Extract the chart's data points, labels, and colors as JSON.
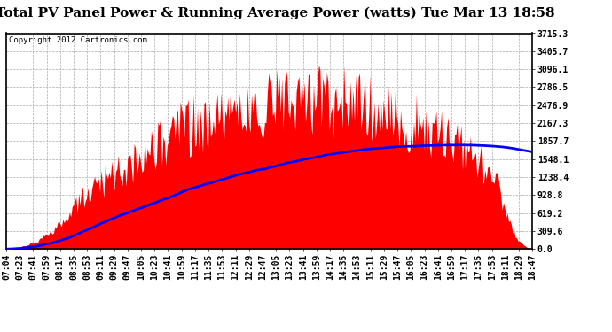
{
  "title": "Total PV Panel Power & Running Average Power (watts) Tue Mar 13 18:58",
  "copyright": "Copyright 2012 Cartronics.com",
  "background_color": "#ffffff",
  "plot_bg_color": "#ffffff",
  "bar_color": "#ff0000",
  "line_color": "#0000ff",
  "yticks": [
    0.0,
    309.6,
    619.2,
    928.8,
    1238.4,
    1548.1,
    1857.7,
    2167.3,
    2476.9,
    2786.5,
    3096.1,
    3405.7,
    3715.3
  ],
  "ymax": 3715.3,
  "x_start_hour": 7,
  "x_start_min": 4,
  "x_end_hour": 18,
  "x_end_min": 47,
  "title_fontsize": 11,
  "copyright_fontsize": 6.5,
  "tick_fontsize": 7,
  "x_labels": [
    "07:04",
    "07:23",
    "07:41",
    "07:59",
    "08:17",
    "08:35",
    "08:53",
    "09:11",
    "09:29",
    "09:47",
    "10:05",
    "10:23",
    "10:41",
    "10:59",
    "11:17",
    "11:35",
    "11:53",
    "12:11",
    "12:29",
    "12:47",
    "13:05",
    "13:23",
    "13:41",
    "13:59",
    "14:17",
    "14:35",
    "14:53",
    "15:11",
    "15:29",
    "15:47",
    "16:05",
    "16:23",
    "16:41",
    "16:59",
    "17:17",
    "17:35",
    "17:53",
    "18:11",
    "18:29",
    "18:47"
  ]
}
